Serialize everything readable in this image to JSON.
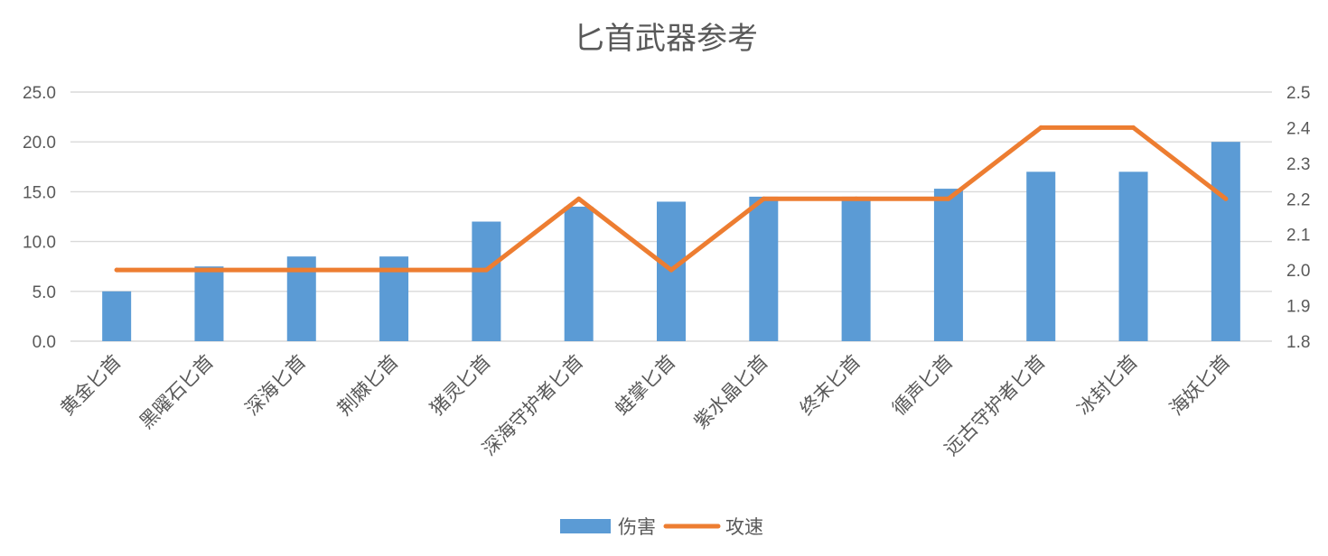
{
  "chart_data": {
    "type": "bar",
    "title": "匕首武器参考",
    "categories": [
      "黄金匕首",
      "黑曜石匕首",
      "深海匕首",
      "荆棘匕首",
      "猪灵匕首",
      "深海守护者匕首",
      "蛙掌匕首",
      "紫水晶匕首",
      "终末匕首",
      "循声匕首",
      "远古守护者匕首",
      "冰封匕首",
      "海妖匕首"
    ],
    "series": [
      {
        "name": "伤害",
        "type": "bar",
        "axis": "left",
        "color": "#5b9bd5",
        "values": [
          5.0,
          7.5,
          8.5,
          8.5,
          12.0,
          13.5,
          14.0,
          14.5,
          14.5,
          15.3,
          17.0,
          17.0,
          20.0
        ]
      },
      {
        "name": "攻速",
        "type": "line",
        "axis": "right",
        "color": "#ed7d31",
        "values": [
          2.0,
          2.0,
          2.0,
          2.0,
          2.0,
          2.2,
          2.0,
          2.2,
          2.2,
          2.2,
          2.4,
          2.4,
          2.2
        ]
      }
    ],
    "y_left": {
      "ylim": [
        0,
        25
      ],
      "ticks": [
        "0.0",
        "5.0",
        "10.0",
        "15.0",
        "20.0",
        "25.0"
      ]
    },
    "y_right": {
      "ylim": [
        1.8,
        2.5
      ],
      "ticks": [
        "1.8",
        "1.9",
        "2.0",
        "2.1",
        "2.2",
        "2.3",
        "2.4",
        "2.5"
      ]
    },
    "grid": true,
    "legend": "bottom"
  }
}
